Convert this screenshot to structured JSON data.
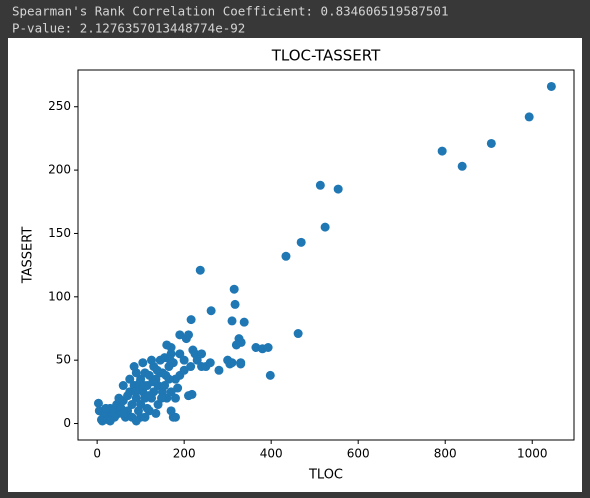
{
  "output": [
    "Spearman's Rank Correlation Coefficient: 0.834606519587501",
    "P-value: 2.1276357013448774e-92"
  ],
  "chart_data": {
    "type": "scatter",
    "title": "TLOC-TASSERT",
    "x_label": "TLOC",
    "y_label": "TASSERT",
    "color": "#1f77b4",
    "xlim": [
      -44,
      1096
    ],
    "ylim": [
      -13,
      279
    ],
    "xticks": [
      0,
      200,
      400,
      600,
      800,
      1000
    ],
    "yticks": [
      0,
      50,
      100,
      150,
      200,
      250
    ],
    "x": [
      1044,
      993,
      906,
      793,
      839,
      513,
      554,
      524,
      469,
      434,
      237,
      315,
      317,
      262,
      338,
      310,
      216,
      462,
      326,
      331,
      365,
      380,
      393,
      398,
      240,
      330,
      218,
      180,
      190,
      170,
      5,
      3,
      10,
      12,
      15,
      20,
      25,
      30,
      35,
      40,
      45,
      50,
      55,
      60,
      65,
      70,
      75,
      80,
      85,
      90,
      95,
      100,
      105,
      110,
      115,
      120,
      125,
      130,
      135,
      140,
      145,
      150,
      155,
      160,
      165,
      170,
      175,
      180,
      185,
      190,
      200,
      205,
      210,
      215,
      220,
      225,
      230,
      240,
      250,
      260,
      280,
      300,
      305,
      310,
      320,
      330,
      60,
      70,
      80,
      90,
      100,
      110,
      120,
      130,
      140,
      150,
      160,
      170,
      175,
      180,
      190,
      200,
      210,
      40,
      50,
      30,
      20,
      85,
      95,
      105,
      115,
      125,
      135,
      145,
      155,
      165,
      170,
      60,
      75,
      88,
      98,
      108,
      118,
      128,
      138,
      148,
      158,
      168,
      100,
      90,
      110
    ],
    "y": [
      266,
      242,
      221,
      215,
      203,
      188,
      185,
      155,
      143,
      132,
      121,
      106,
      94,
      89,
      80,
      81,
      82,
      71,
      67,
      64,
      60,
      59,
      60,
      38,
      45,
      47,
      23,
      5,
      70,
      60,
      10,
      16,
      3,
      2,
      5,
      8,
      3,
      12,
      6,
      10,
      15,
      8,
      12,
      18,
      5,
      22,
      25,
      15,
      30,
      20,
      28,
      35,
      25,
      40,
      30,
      38,
      20,
      45,
      35,
      30,
      50,
      40,
      52,
      62,
      45,
      55,
      48,
      35,
      28,
      55,
      50,
      67,
      70,
      45,
      58,
      55,
      50,
      55,
      45,
      48,
      42,
      50,
      47,
      48,
      62,
      48,
      30,
      10,
      5,
      40,
      15,
      20,
      10,
      25,
      15,
      25,
      20,
      25,
      5,
      20,
      38,
      42,
      22,
      5,
      20,
      2,
      12,
      45,
      10,
      48,
      12,
      50,
      8,
      40,
      30,
      35,
      10,
      8,
      35,
      25,
      32,
      30,
      22,
      33,
      42,
      20,
      38,
      50,
      5,
      2,
      5
    ]
  }
}
